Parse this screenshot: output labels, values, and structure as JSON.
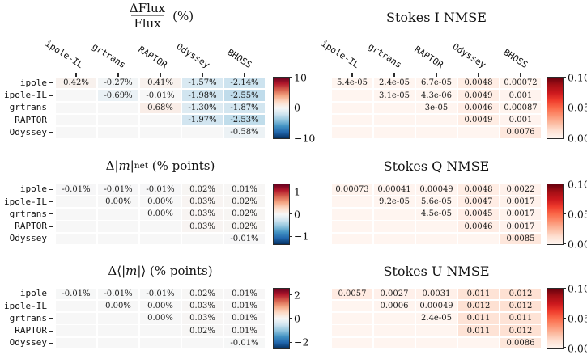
{
  "figure": {
    "background": "#ffffff",
    "text_color": "#1a1a1a"
  },
  "colormaps": {
    "RdBu_r": [
      "#053061",
      "#2166ac",
      "#4393c3",
      "#92c5de",
      "#d1e5f0",
      "#f7f7f7",
      "#fddbc7",
      "#f4a582",
      "#d6604d",
      "#b2182b",
      "#67001f"
    ],
    "Reds": [
      "#fff5f0",
      "#fee0d2",
      "#fcbba1",
      "#fc9272",
      "#fb6a4a",
      "#ef3b2c",
      "#cb181d",
      "#a50f15",
      "#67000d"
    ]
  },
  "row_labels": [
    "ipole",
    "ipole-IL",
    "grtrans",
    "RAPTOR",
    "Odyssey"
  ],
  "col_labels": [
    "ipole-IL",
    "grtrans",
    "RAPTOR",
    "Odyssey",
    "BHOSS"
  ],
  "chart_data": [
    {
      "id": "flux-percent-diff",
      "type": "heatmap",
      "grid": {
        "row": 0,
        "col": 0
      },
      "title_text": "ΔFlux/Flux (%)",
      "title_display": {
        "kind": "fraction",
        "numerator": "ΔFlux",
        "denominator": "Flux",
        "suffix": "(%)"
      },
      "cmap": "RdBu_r",
      "vmin": -10,
      "vmax": 10,
      "colorbar_ticks": [
        {
          "label": "10",
          "value": 10
        },
        {
          "label": "0",
          "value": 0
        },
        {
          "label": "−10",
          "value": -10
        }
      ],
      "cell_labels": [
        [
          "0.42%",
          "-0.27%",
          "0.41%",
          "-1.57%",
          "-2.14%"
        ],
        [
          null,
          "-0.69%",
          "-0.01%",
          "-1.98%",
          "-2.55%"
        ],
        [
          null,
          null,
          "0.68%",
          "-1.30%",
          "-1.87%"
        ],
        [
          null,
          null,
          null,
          "-1.97%",
          "-2.53%"
        ],
        [
          null,
          null,
          null,
          null,
          "-0.58%"
        ]
      ],
      "values": [
        [
          0.42,
          -0.27,
          0.41,
          -1.57,
          -2.14
        ],
        [
          null,
          -0.69,
          -0.01,
          -1.98,
          -2.55
        ],
        [
          null,
          null,
          0.68,
          -1.3,
          -1.87
        ],
        [
          null,
          null,
          null,
          -1.97,
          -2.53
        ],
        [
          null,
          null,
          null,
          null,
          -0.58
        ]
      ]
    },
    {
      "id": "stokes-i-nmse",
      "type": "heatmap",
      "grid": {
        "row": 0,
        "col": 1
      },
      "title_text": "Stokes I NMSE",
      "title_display": {
        "kind": "plain",
        "text": "Stokes I NMSE"
      },
      "cmap": "Reds",
      "vmin": 0,
      "vmax": 0.1,
      "colorbar_ticks": [
        {
          "label": "0.10",
          "value": 0.1
        },
        {
          "label": "0.05",
          "value": 0.05
        },
        {
          "label": "0.00",
          "value": 0
        }
      ],
      "cell_labels": [
        [
          "5.4e-05",
          "2.4e-05",
          "6.7e-05",
          "0.0048",
          "0.00072"
        ],
        [
          null,
          "3.1e-05",
          "4.3e-06",
          "0.0049",
          "0.001"
        ],
        [
          null,
          null,
          "3e-05",
          "0.0046",
          "0.00087"
        ],
        [
          null,
          null,
          null,
          "0.0049",
          "0.001"
        ],
        [
          null,
          null,
          null,
          null,
          "0.0076"
        ]
      ],
      "values": [
        [
          5.4e-05,
          2.4e-05,
          6.7e-05,
          0.0048,
          0.00072
        ],
        [
          null,
          3.1e-05,
          4.3e-06,
          0.0049,
          0.001
        ],
        [
          null,
          null,
          3e-05,
          0.0046,
          0.00087
        ],
        [
          null,
          null,
          null,
          0.0049,
          0.001
        ],
        [
          null,
          null,
          null,
          null,
          0.0076
        ]
      ]
    },
    {
      "id": "m-net-diff",
      "type": "heatmap",
      "grid": {
        "row": 1,
        "col": 0
      },
      "title_text": "Δ|m|net (% points)",
      "title_display": {
        "kind": "math",
        "pre": "Δ|",
        "var": "m",
        "post": "|",
        "sub": "net",
        "suffix": " (% points)"
      },
      "cmap": "RdBu_r",
      "vmin": -1.35,
      "vmax": 1.35,
      "colorbar_ticks": [
        {
          "label": "1",
          "value": 1
        },
        {
          "label": "0",
          "value": 0
        },
        {
          "label": "−1",
          "value": -1
        }
      ],
      "cell_labels": [
        [
          "-0.01%",
          "-0.01%",
          "-0.01%",
          "0.02%",
          "0.01%"
        ],
        [
          null,
          "0.00%",
          "0.00%",
          "0.03%",
          "0.02%"
        ],
        [
          null,
          null,
          "0.00%",
          "0.03%",
          "0.02%"
        ],
        [
          null,
          null,
          null,
          "0.03%",
          "0.02%"
        ],
        [
          null,
          null,
          null,
          null,
          "-0.01%"
        ]
      ],
      "values": [
        [
          -0.01,
          -0.01,
          -0.01,
          0.02,
          0.01
        ],
        [
          null,
          0.0,
          0.0,
          0.03,
          0.02
        ],
        [
          null,
          null,
          0.0,
          0.03,
          0.02
        ],
        [
          null,
          null,
          null,
          0.03,
          0.02
        ],
        [
          null,
          null,
          null,
          null,
          -0.01
        ]
      ]
    },
    {
      "id": "stokes-q-nmse",
      "type": "heatmap",
      "grid": {
        "row": 1,
        "col": 1
      },
      "title_text": "Stokes Q NMSE",
      "title_display": {
        "kind": "plain",
        "text": "Stokes Q NMSE"
      },
      "cmap": "Reds",
      "vmin": 0,
      "vmax": 0.1,
      "colorbar_ticks": [
        {
          "label": "0.10",
          "value": 0.1
        },
        {
          "label": "0.05",
          "value": 0.05
        },
        {
          "label": "0.00",
          "value": 0
        }
      ],
      "cell_labels": [
        [
          "0.00073",
          "0.00041",
          "0.00049",
          "0.0048",
          "0.0022"
        ],
        [
          null,
          "9.2e-05",
          "5.6e-05",
          "0.0047",
          "0.0017"
        ],
        [
          null,
          null,
          "4.5e-05",
          "0.0045",
          "0.0017"
        ],
        [
          null,
          null,
          null,
          "0.0046",
          "0.0017"
        ],
        [
          null,
          null,
          null,
          null,
          "0.0085"
        ]
      ],
      "values": [
        [
          0.00073,
          0.00041,
          0.00049,
          0.0048,
          0.0022
        ],
        [
          null,
          9.2e-05,
          5.6e-05,
          0.0047,
          0.0017
        ],
        [
          null,
          null,
          4.5e-05,
          0.0045,
          0.0017
        ],
        [
          null,
          null,
          null,
          0.0046,
          0.0017
        ],
        [
          null,
          null,
          null,
          null,
          0.0085
        ]
      ]
    },
    {
      "id": "m-avg-diff",
      "type": "heatmap",
      "grid": {
        "row": 2,
        "col": 0
      },
      "title_text": "Δ⟨|m|⟩ (% points)",
      "title_display": {
        "kind": "math",
        "pre": "Δ⟨|",
        "var": "m",
        "post": "|⟩",
        "sub": "",
        "suffix": " (% points)"
      },
      "cmap": "RdBu_r",
      "vmin": -2.55,
      "vmax": 2.55,
      "colorbar_ticks": [
        {
          "label": "2",
          "value": 2
        },
        {
          "label": "0",
          "value": 0
        },
        {
          "label": "−2",
          "value": -2
        }
      ],
      "cell_labels": [
        [
          "-0.01%",
          "-0.01%",
          "-0.01%",
          "0.02%",
          "0.01%"
        ],
        [
          null,
          "0.00%",
          "0.00%",
          "0.03%",
          "0.01%"
        ],
        [
          null,
          null,
          "0.00%",
          "0.03%",
          "0.01%"
        ],
        [
          null,
          null,
          null,
          "0.02%",
          "0.01%"
        ],
        [
          null,
          null,
          null,
          null,
          "-0.01%"
        ]
      ],
      "values": [
        [
          -0.01,
          -0.01,
          -0.01,
          0.02,
          0.01
        ],
        [
          null,
          0.0,
          0.0,
          0.03,
          0.01
        ],
        [
          null,
          null,
          0.0,
          0.03,
          0.01
        ],
        [
          null,
          null,
          null,
          0.02,
          0.01
        ],
        [
          null,
          null,
          null,
          null,
          -0.01
        ]
      ]
    },
    {
      "id": "stokes-u-nmse",
      "type": "heatmap",
      "grid": {
        "row": 2,
        "col": 1
      },
      "title_text": "Stokes U NMSE",
      "title_display": {
        "kind": "plain",
        "text": "Stokes U NMSE"
      },
      "cmap": "Reds",
      "vmin": 0,
      "vmax": 0.1,
      "colorbar_ticks": [
        {
          "label": "0.10",
          "value": 0.1
        },
        {
          "label": "0.05",
          "value": 0.05
        },
        {
          "label": "0.00",
          "value": 0
        }
      ],
      "cell_labels": [
        [
          "0.0057",
          "0.0027",
          "0.0031",
          "0.011",
          "0.012"
        ],
        [
          null,
          "0.0006",
          "0.00049",
          "0.012",
          "0.012"
        ],
        [
          null,
          null,
          "2.4e-05",
          "0.011",
          "0.011"
        ],
        [
          null,
          null,
          null,
          "0.011",
          "0.012"
        ],
        [
          null,
          null,
          null,
          null,
          "0.0086"
        ]
      ],
      "values": [
        [
          0.0057,
          0.0027,
          0.0031,
          0.011,
          0.012
        ],
        [
          null,
          0.0006,
          0.00049,
          0.012,
          0.012
        ],
        [
          null,
          null,
          2.4e-05,
          0.011,
          0.011
        ],
        [
          null,
          null,
          null,
          0.011,
          0.012
        ],
        [
          null,
          null,
          null,
          null,
          0.0086
        ]
      ]
    }
  ]
}
